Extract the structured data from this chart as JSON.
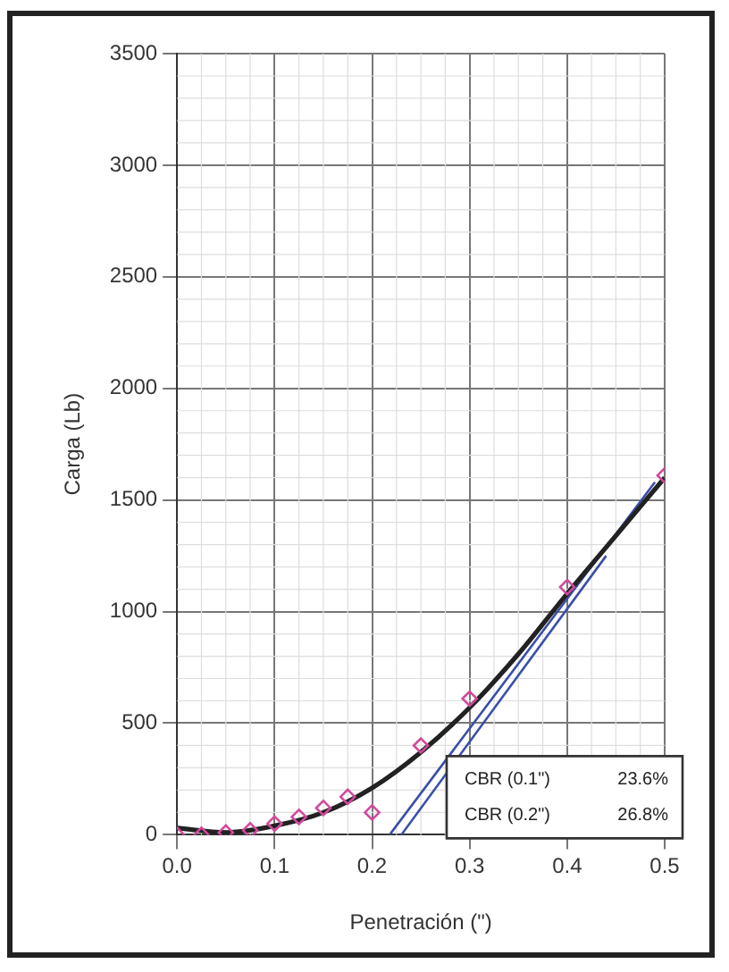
{
  "chart_data": {
    "type": "scatter",
    "xlabel": "Penetración (\")",
    "ylabel": "Carga (Lb)",
    "xlim": [
      0,
      0.5
    ],
    "xticks": [
      {
        "value": 0,
        "label": "0.0"
      },
      0.1,
      0.2,
      0.3,
      0.4,
      0.5
    ],
    "ylim": [
      0,
      3500
    ],
    "yticks": [
      0,
      500,
      1000,
      1500,
      2000,
      2500,
      3000,
      3500
    ],
    "grid": true,
    "legend": false,
    "series": [
      {
        "color": "#d04a9c",
        "marker": "diamond",
        "x": [
          0,
          0.025,
          0.05,
          0.075,
          0.1,
          0.125,
          0.15,
          0.175,
          0.2,
          0.25,
          0.3,
          0.4,
          0.5
        ],
        "values": [
          0,
          0,
          10,
          20,
          50,
          80,
          120,
          170,
          100,
          400,
          610,
          1110,
          1610
        ]
      },
      {
        "type": "line",
        "color": "#222222",
        "marker": "none",
        "x": [
          0,
          0.05,
          0.1,
          0.15,
          0.2,
          0.25,
          0.3,
          0.35,
          0.4,
          0.45,
          0.5
        ],
        "values": [
          30,
          10,
          40,
          100,
          210,
          370,
          570,
          810,
          1080,
          1340,
          1600
        ]
      },
      {
        "type": "line",
        "color": "#3a4fa8",
        "marker": "none",
        "x": [
          0.218,
          0.49
        ],
        "values": [
          0,
          1580
        ]
      },
      {
        "type": "line",
        "color": "#3a4fa8",
        "marker": "none",
        "x": [
          0.23,
          0.44
        ],
        "values": [
          0,
          1250
        ]
      }
    ],
    "annotations": [
      "CBR (0.1\")",
      "23.6%",
      "CBR (0.2\")",
      "26.8%"
    ]
  }
}
